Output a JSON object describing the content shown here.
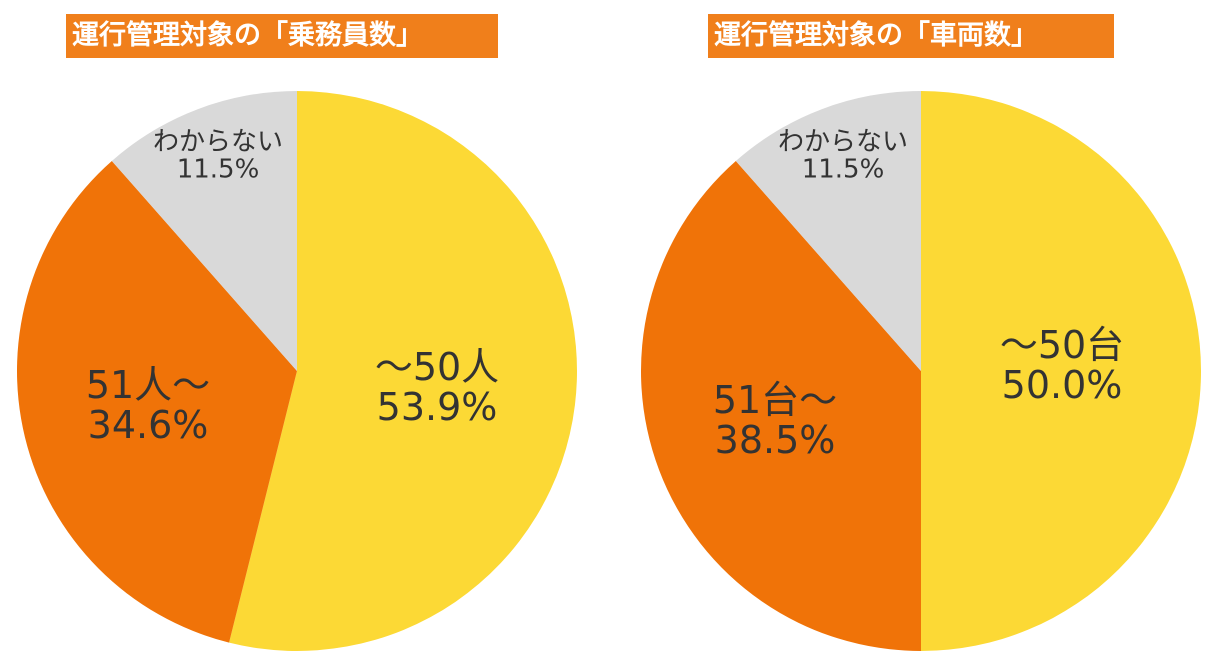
{
  "chart_data": [
    {
      "type": "pie",
      "title": "運行管理対象の「乗務員数」",
      "slices": [
        {
          "label": "～50人",
          "percent_label": "53.9%",
          "value": 53.9,
          "color": "#fcd935"
        },
        {
          "label": "51人～",
          "percent_label": "34.6%",
          "value": 34.6,
          "color": "#f07308"
        },
        {
          "label": "わからない",
          "percent_label": "11.5%",
          "value": 11.5,
          "color": "#d9d9d9"
        }
      ]
    },
    {
      "type": "pie",
      "title": "運行管理対象の「車両数」",
      "slices": [
        {
          "label": "～50台",
          "percent_label": "50.0%",
          "value": 50.0,
          "color": "#fcd935"
        },
        {
          "label": "51台～",
          "percent_label": "38.5%",
          "value": 38.5,
          "color": "#f07308"
        },
        {
          "label": "わからない",
          "percent_label": "11.5%",
          "value": 11.5,
          "color": "#d9d9d9"
        }
      ]
    }
  ]
}
